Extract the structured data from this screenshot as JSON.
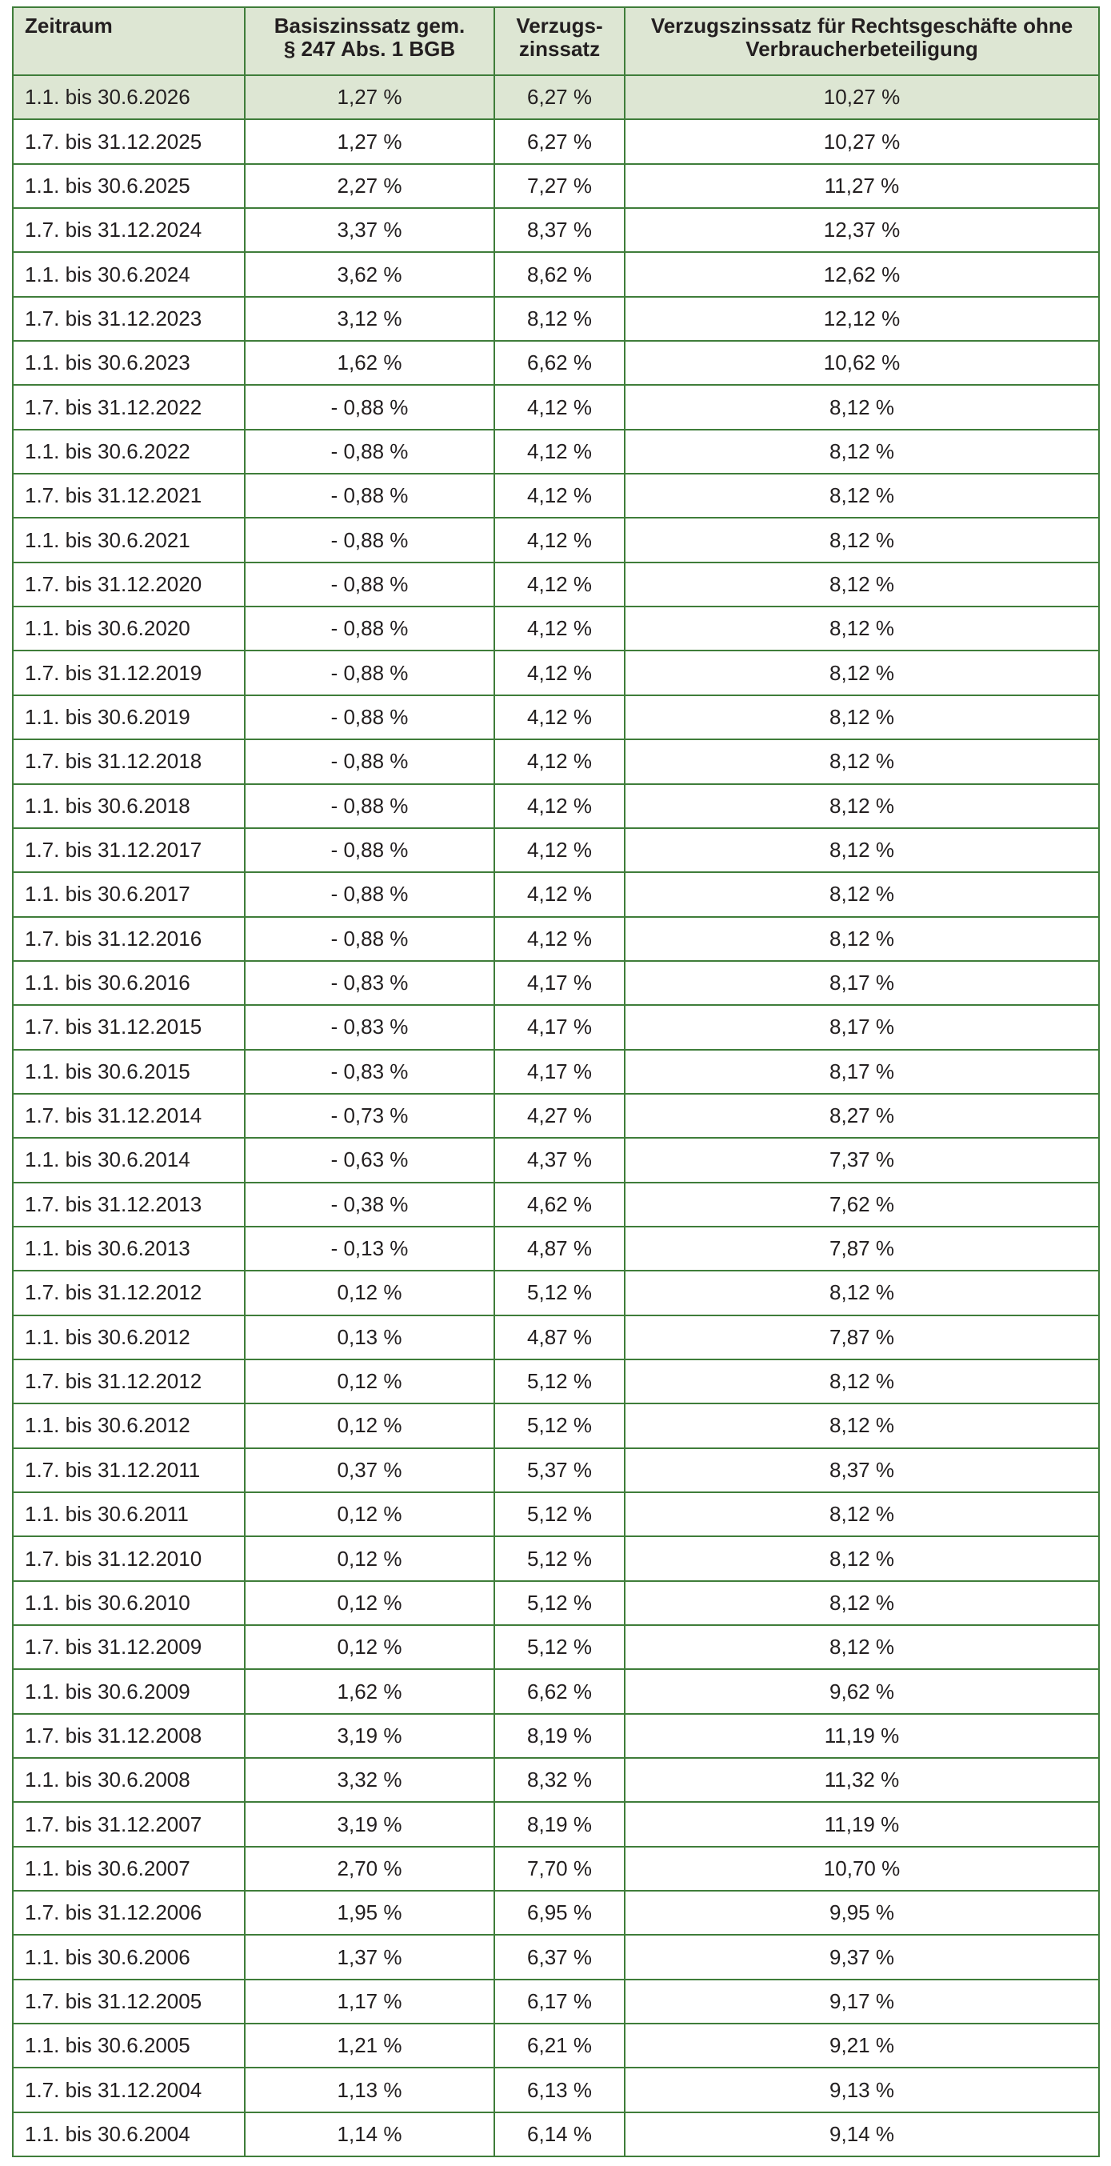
{
  "table": {
    "headers": [
      "Zeitraum",
      "Basiszinssatz gem. § 247 Abs. 1 BGB",
      "Verzugs-zinssatz",
      "Verzugszinssatz für Rechtsgeschäfte ohne Verbraucherbeteiligung"
    ],
    "header_lines": {
      "h0": [
        "Zeitraum"
      ],
      "h1": [
        "Basiszinssatz gem.",
        "§ 247 Abs. 1 BGB"
      ],
      "h2": [
        "Verzugs-",
        "zinssatz"
      ],
      "h3": [
        "Verzugszinssatz für Rechtsgeschäfte ohne",
        "Verbraucherbeteiligung"
      ]
    },
    "highlight_row_index": 0,
    "colors": {
      "border": "#3f7d3a",
      "header_bg": "#dde6d3",
      "highlight_bg": "#dde6d3"
    },
    "rows": [
      [
        "1.1. bis 30.6.2026",
        "1,27 %",
        "6,27 %",
        "10,27 %"
      ],
      [
        "1.7. bis 31.12.2025",
        "1,27 %",
        "6,27 %",
        "10,27 %"
      ],
      [
        "1.1. bis 30.6.2025",
        "2,27 %",
        "7,27 %",
        "11,27 %"
      ],
      [
        "1.7. bis 31.12.2024",
        "3,37 %",
        "8,37 %",
        "12,37 %"
      ],
      [
        "1.1. bis 30.6.2024",
        "3,62 %",
        "8,62 %",
        "12,62 %"
      ],
      [
        "1.7. bis 31.12.2023",
        "3,12 %",
        "8,12 %",
        "12,12 %"
      ],
      [
        "1.1. bis 30.6.2023",
        "1,62 %",
        "6,62 %",
        "10,62 %"
      ],
      [
        "1.7. bis 31.12.2022",
        "- 0,88 %",
        "4,12 %",
        "8,12 %"
      ],
      [
        "1.1. bis 30.6.2022",
        "- 0,88 %",
        "4,12 %",
        "8,12 %"
      ],
      [
        "1.7. bis 31.12.2021",
        "- 0,88 %",
        "4,12 %",
        "8,12 %"
      ],
      [
        "1.1. bis 30.6.2021",
        "- 0,88 %",
        "4,12 %",
        "8,12 %"
      ],
      [
        "1.7. bis 31.12.2020",
        "- 0,88 %",
        "4,12 %",
        "8,12 %"
      ],
      [
        "1.1. bis 30.6.2020",
        "- 0,88 %",
        "4,12 %",
        "8,12 %"
      ],
      [
        "1.7. bis 31.12.2019",
        "- 0,88 %",
        "4,12 %",
        "8,12 %"
      ],
      [
        "1.1. bis 30.6.2019",
        "- 0,88 %",
        "4,12 %",
        "8,12 %"
      ],
      [
        "1.7. bis 31.12.2018",
        "- 0,88 %",
        "4,12 %",
        "8,12 %"
      ],
      [
        "1.1. bis 30.6.2018",
        "- 0,88 %",
        "4,12 %",
        "8,12 %"
      ],
      [
        "1.7. bis 31.12.2017",
        "- 0,88 %",
        "4,12 %",
        "8,12 %"
      ],
      [
        "1.1. bis 30.6.2017",
        "- 0,88 %",
        "4,12 %",
        "8,12 %"
      ],
      [
        "1.7. bis 31.12.2016",
        "- 0,88 %",
        "4,12 %",
        "8,12 %"
      ],
      [
        "1.1. bis 30.6.2016",
        "- 0,83 %",
        "4,17 %",
        "8,17 %"
      ],
      [
        "1.7. bis 31.12.2015",
        "- 0,83 %",
        "4,17 %",
        "8,17 %"
      ],
      [
        "1.1. bis 30.6.2015",
        "- 0,83 %",
        "4,17 %",
        "8,17 %"
      ],
      [
        "1.7. bis 31.12.2014",
        "- 0,73 %",
        "4,27 %",
        "8,27 %"
      ],
      [
        "1.1. bis 30.6.2014",
        "- 0,63 %",
        "4,37 %",
        "7,37 %"
      ],
      [
        "1.7. bis 31.12.2013",
        "- 0,38 %",
        "4,62 %",
        "7,62 %"
      ],
      [
        "1.1. bis 30.6.2013",
        "- 0,13 %",
        "4,87 %",
        "7,87 %"
      ],
      [
        "1.7. bis 31.12.2012",
        "0,12 %",
        "5,12 %",
        "8,12 %"
      ],
      [
        "1.1. bis 30.6.2012",
        "0,13 %",
        "4,87 %",
        "7,87 %"
      ],
      [
        "1.7. bis 31.12.2012",
        "0,12 %",
        "5,12 %",
        "8,12 %"
      ],
      [
        "1.1. bis 30.6.2012",
        "0,12 %",
        "5,12 %",
        "8,12 %"
      ],
      [
        "1.7. bis 31.12.2011",
        "0,37 %",
        "5,37 %",
        "8,37 %"
      ],
      [
        "1.1. bis 30.6.2011",
        "0,12 %",
        "5,12 %",
        "8,12 %"
      ],
      [
        "1.7. bis 31.12.2010",
        "0,12 %",
        "5,12 %",
        "8,12 %"
      ],
      [
        "1.1. bis 30.6.2010",
        "0,12 %",
        "5,12 %",
        "8,12 %"
      ],
      [
        "1.7. bis 31.12.2009",
        "0,12 %",
        "5,12 %",
        "8,12 %"
      ],
      [
        "1.1. bis 30.6.2009",
        "1,62 %",
        "6,62 %",
        "9,62 %"
      ],
      [
        "1.7. bis 31.12.2008",
        "3,19 %",
        "8,19 %",
        "11,19 %"
      ],
      [
        "1.1. bis 30.6.2008",
        "3,32 %",
        "8,32 %",
        "11,32 %"
      ],
      [
        "1.7. bis 31.12.2007",
        "3,19 %",
        "8,19 %",
        "11,19 %"
      ],
      [
        "1.1. bis 30.6.2007",
        "2,70 %",
        "7,70 %",
        "10,70 %"
      ],
      [
        "1.7. bis 31.12.2006",
        "1,95 %",
        "6,95 %",
        "9,95 %"
      ],
      [
        "1.1. bis 30.6.2006",
        "1,37 %",
        "6,37 %",
        "9,37 %"
      ],
      [
        "1.7. bis 31.12.2005",
        "1,17 %",
        "6,17 %",
        "9,17 %"
      ],
      [
        "1.1. bis 30.6.2005",
        "1,21 %",
        "6,21 %",
        "9,21 %"
      ],
      [
        "1.7. bis 31.12.2004",
        "1,13 %",
        "6,13 %",
        "9,13 %"
      ],
      [
        "1.1. bis 30.6.2004",
        "1,14 %",
        "6,14 %",
        "9,14 %"
      ]
    ]
  }
}
